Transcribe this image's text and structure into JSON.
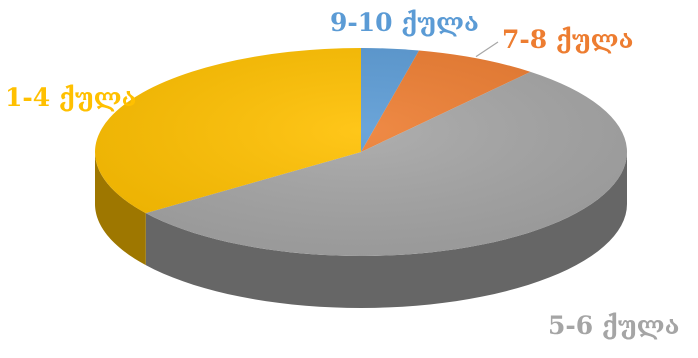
{
  "chart_data": {
    "type": "pie",
    "style": "3d",
    "title": "",
    "slices": [
      {
        "label": "9-10 ქულა",
        "value": 3.5,
        "color": "#5b9bd5"
      },
      {
        "label": "7-8 ქულა",
        "value": 7.5,
        "color": "#ed7d31"
      },
      {
        "label": "5-6 ქულა",
        "value": 54,
        "color": "#a5a5a5"
      },
      {
        "label": "1-4 ქულა",
        "value": 35,
        "color": "#ffc000"
      }
    ],
    "label_colors": [
      "#5b9bd5",
      "#ed7d31",
      "#a5a5a5",
      "#ffc000"
    ],
    "legend": "none"
  }
}
